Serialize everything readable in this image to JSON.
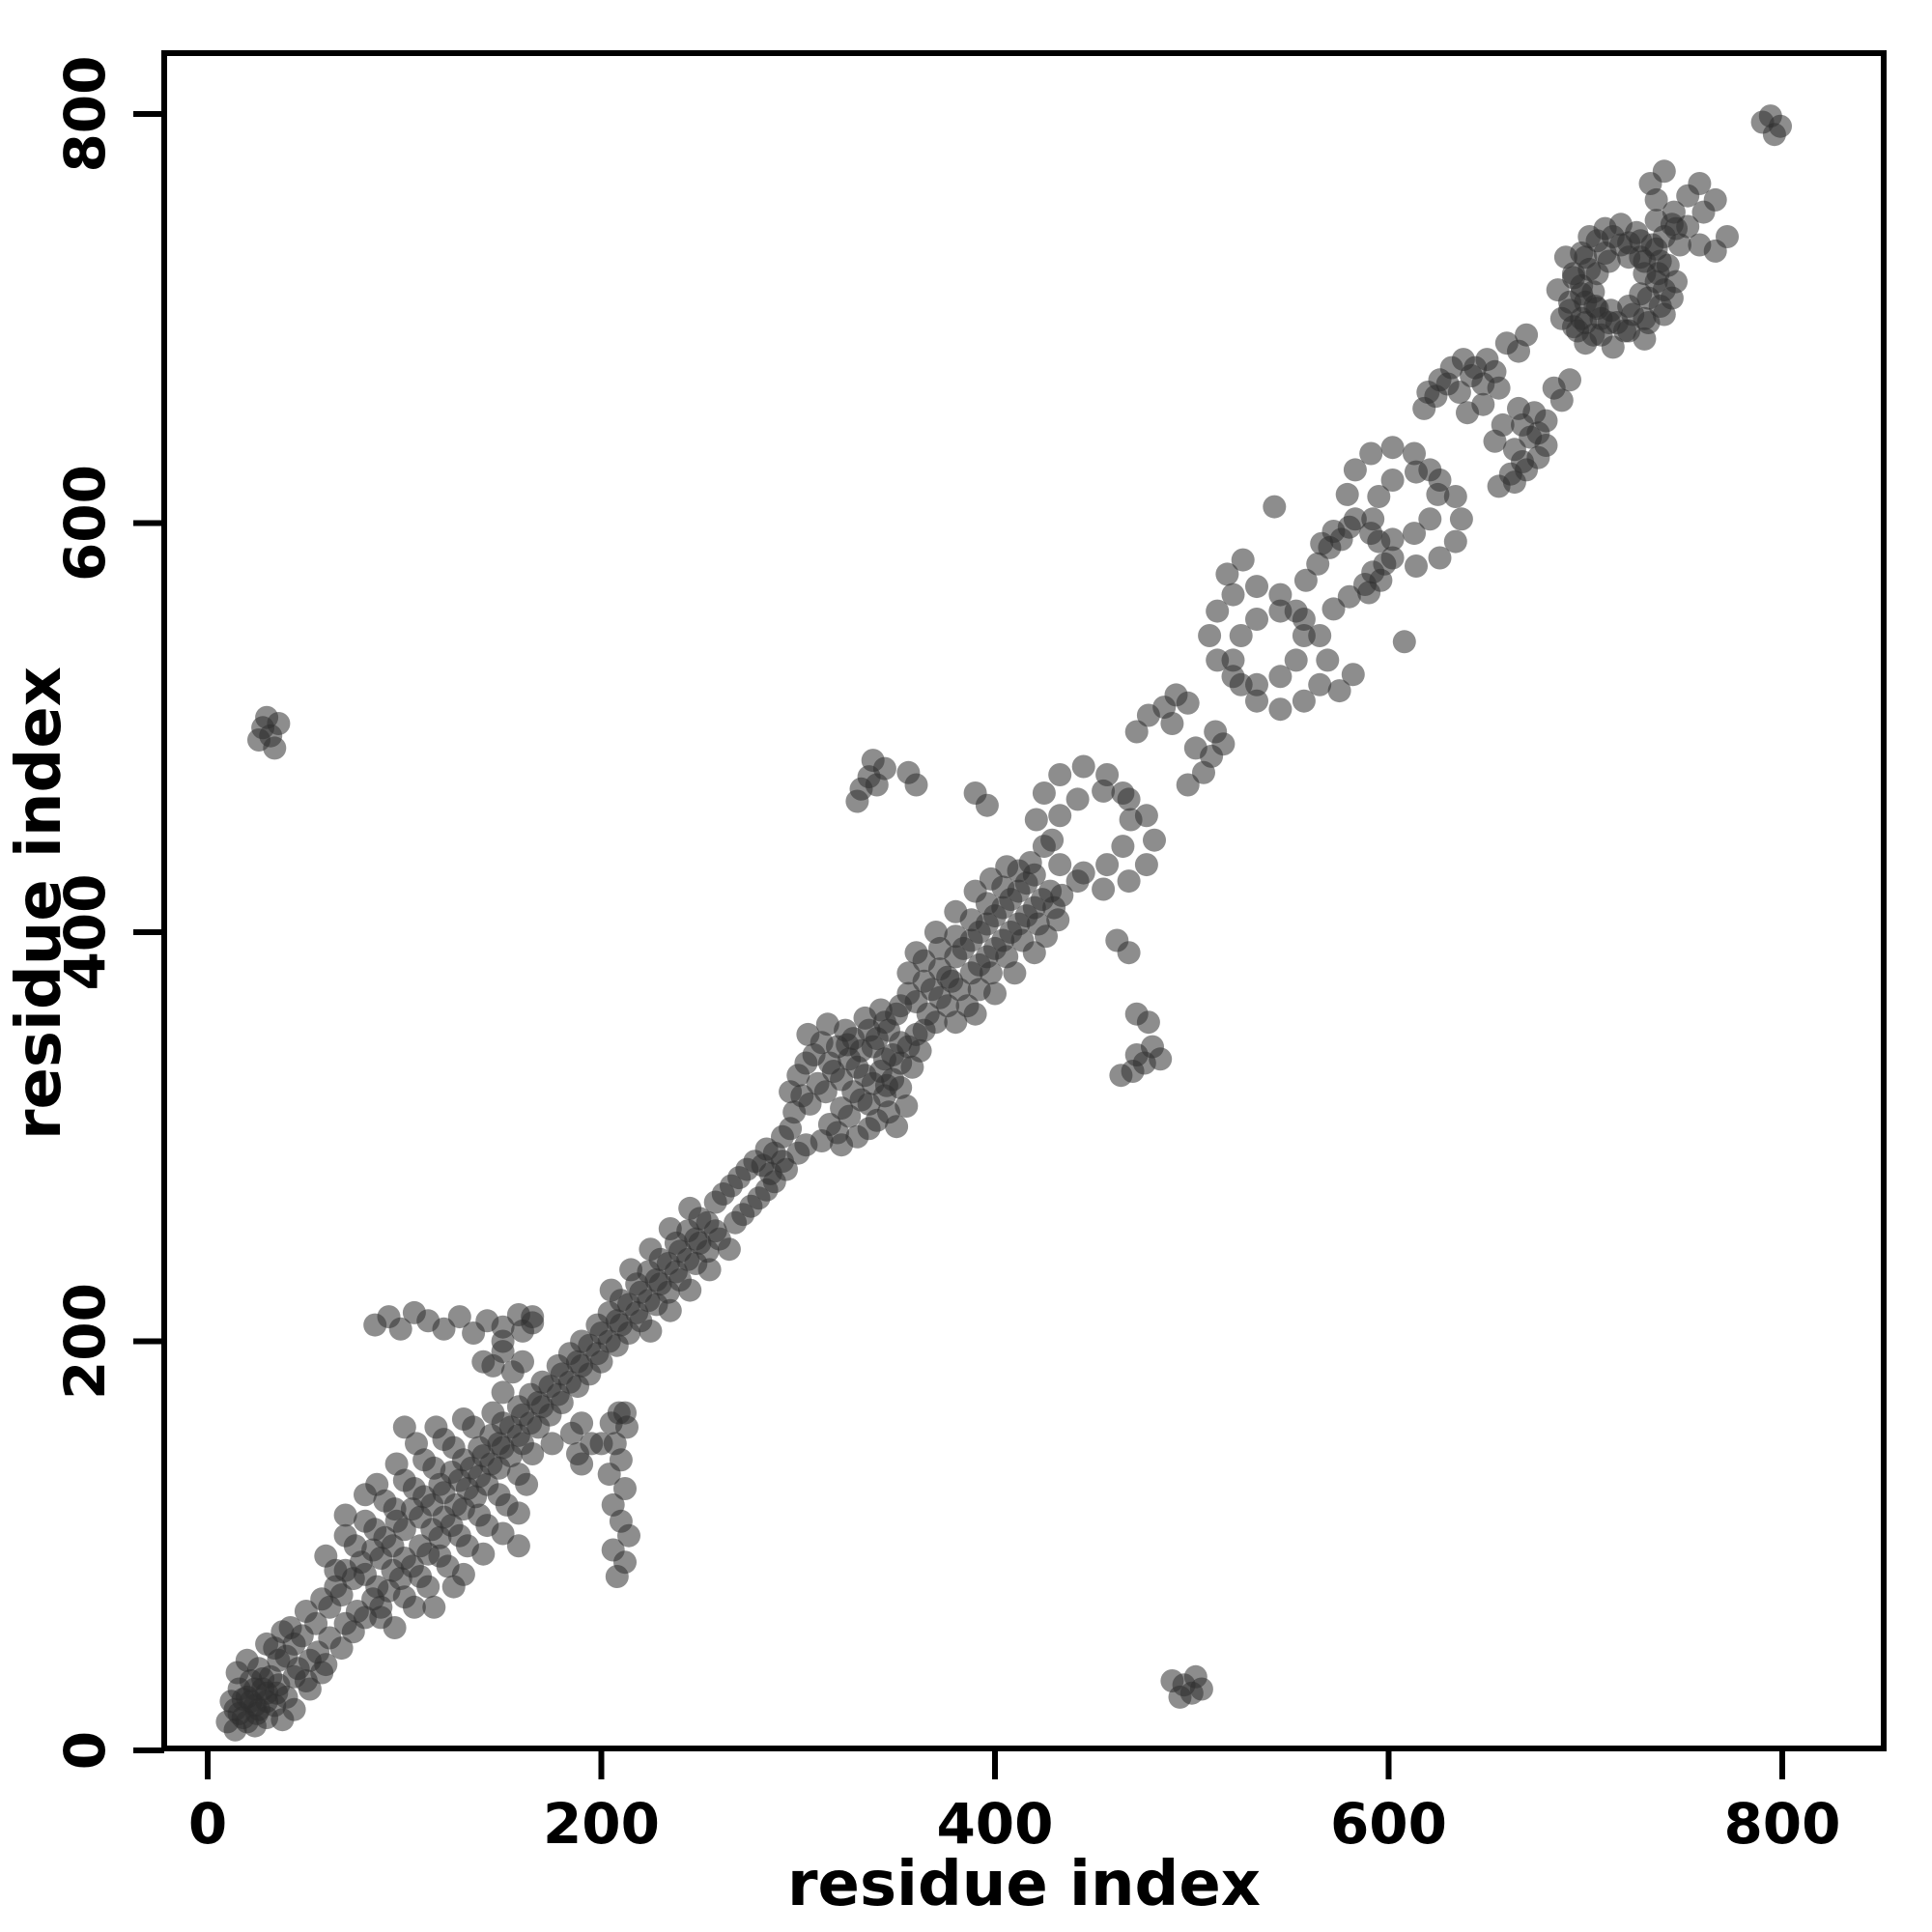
{
  "figure": {
    "background": "#ffffff"
  },
  "chart_data": {
    "type": "scatter",
    "title": "",
    "xlabel": "residue index",
    "ylabel": "residue index",
    "xlim": [
      -30,
      840
    ],
    "ylim": [
      -30,
      840
    ],
    "x_ticks": [
      0,
      200,
      400,
      600,
      800
    ],
    "y_ticks": [
      0,
      200,
      400,
      600,
      800
    ],
    "grid": false,
    "legend": false,
    "marker": {
      "color": "#303030",
      "opacity": 0.55,
      "radius_px": 12
    },
    "symmetric": true,
    "points": [
      [
        10,
        14
      ],
      [
        14,
        20
      ],
      [
        18,
        16
      ],
      [
        20,
        26
      ],
      [
        24,
        22
      ],
      [
        16,
        30
      ],
      [
        22,
        34
      ],
      [
        28,
        30
      ],
      [
        30,
        24
      ],
      [
        26,
        40
      ],
      [
        32,
        36
      ],
      [
        36,
        44
      ],
      [
        12,
        24
      ],
      [
        20,
        44
      ],
      [
        34,
        50
      ],
      [
        40,
        46
      ],
      [
        30,
        52
      ],
      [
        44,
        52
      ],
      [
        38,
        58
      ],
      [
        25,
        18
      ],
      [
        15,
        38
      ],
      [
        35,
        28
      ],
      [
        42,
        60
      ],
      [
        48,
        56
      ],
      [
        50,
        68
      ],
      [
        55,
        62
      ],
      [
        58,
        74
      ],
      [
        62,
        70
      ],
      [
        65,
        80
      ],
      [
        68,
        76
      ],
      [
        70,
        88
      ],
      [
        74,
        84
      ],
      [
        78,
        92
      ],
      [
        80,
        86
      ],
      [
        84,
        98
      ],
      [
        88,
        94
      ],
      [
        90,
        104
      ],
      [
        94,
        100
      ],
      [
        96,
        112
      ],
      [
        100,
        108
      ],
      [
        104,
        118
      ],
      [
        108,
        114
      ],
      [
        110,
        124
      ],
      [
        114,
        120
      ],
      [
        118,
        130
      ],
      [
        120,
        126
      ],
      [
        124,
        136
      ],
      [
        128,
        132
      ],
      [
        130,
        142
      ],
      [
        134,
        138
      ],
      [
        138,
        148
      ],
      [
        140,
        144
      ],
      [
        144,
        154
      ],
      [
        148,
        150
      ],
      [
        150,
        160
      ],
      [
        154,
        158
      ],
      [
        158,
        168
      ],
      [
        160,
        164
      ],
      [
        164,
        174
      ],
      [
        168,
        170
      ],
      [
        170,
        180
      ],
      [
        174,
        178
      ],
      [
        178,
        188
      ],
      [
        180,
        184
      ],
      [
        184,
        194
      ],
      [
        188,
        190
      ],
      [
        190,
        200
      ],
      [
        194,
        198
      ],
      [
        198,
        208
      ],
      [
        200,
        204
      ],
      [
        204,
        214
      ],
      [
        208,
        210
      ],
      [
        210,
        220
      ],
      [
        214,
        218
      ],
      [
        218,
        228
      ],
      [
        220,
        224
      ],
      [
        224,
        234
      ],
      [
        228,
        230
      ],
      [
        230,
        240
      ],
      [
        234,
        238
      ],
      [
        238,
        248
      ],
      [
        240,
        244
      ],
      [
        244,
        254
      ],
      [
        248,
        250
      ],
      [
        250,
        260
      ],
      [
        254,
        258
      ],
      [
        245,
        265
      ],
      [
        235,
        255
      ],
      [
        225,
        245
      ],
      [
        215,
        235
      ],
      [
        205,
        225
      ],
      [
        60,
        95
      ],
      [
        70,
        105
      ],
      [
        80,
        112
      ],
      [
        90,
        122
      ],
      [
        100,
        132
      ],
      [
        110,
        142
      ],
      [
        120,
        152
      ],
      [
        130,
        162
      ],
      [
        65,
        88
      ],
      [
        75,
        100
      ],
      [
        85,
        108
      ],
      [
        95,
        118
      ],
      [
        105,
        128
      ],
      [
        115,
        138
      ],
      [
        125,
        148
      ],
      [
        135,
        158
      ],
      [
        145,
        165
      ],
      [
        150,
        175
      ],
      [
        155,
        185
      ],
      [
        160,
        190
      ],
      [
        86,
        130
      ],
      [
        96,
        140
      ],
      [
        106,
        150
      ],
      [
        116,
        158
      ],
      [
        70,
        115
      ],
      [
        80,
        125
      ],
      [
        140,
        190
      ],
      [
        150,
        200
      ],
      [
        160,
        205
      ],
      [
        165,
        212
      ],
      [
        100,
        158
      ],
      [
        150,
        195
      ],
      [
        145,
        188
      ],
      [
        85,
        208
      ],
      [
        92,
        212
      ],
      [
        98,
        206
      ],
      [
        105,
        214
      ],
      [
        112,
        210
      ],
      [
        120,
        206
      ],
      [
        128,
        212
      ],
      [
        135,
        204
      ],
      [
        142,
        210
      ],
      [
        150,
        207
      ],
      [
        158,
        213
      ],
      [
        165,
        209
      ],
      [
        28,
        500
      ],
      [
        32,
        496
      ],
      [
        30,
        505
      ],
      [
        34,
        490
      ],
      [
        36,
        502
      ],
      [
        26,
        494
      ],
      [
        258,
        268
      ],
      [
        262,
        272
      ],
      [
        266,
        276
      ],
      [
        270,
        280
      ],
      [
        274,
        284
      ],
      [
        278,
        288
      ],
      [
        282,
        286
      ],
      [
        284,
        294
      ],
      [
        288,
        292
      ],
      [
        292,
        300
      ],
      [
        296,
        304
      ],
      [
        298,
        312
      ],
      [
        302,
        320
      ],
      [
        306,
        316
      ],
      [
        310,
        326
      ],
      [
        314,
        322
      ],
      [
        318,
        332
      ],
      [
        322,
        328
      ],
      [
        326,
        338
      ],
      [
        330,
        334
      ],
      [
        308,
        340
      ],
      [
        312,
        346
      ],
      [
        316,
        336
      ],
      [
        320,
        344
      ],
      [
        324,
        352
      ],
      [
        328,
        348
      ],
      [
        332,
        342
      ],
      [
        336,
        352
      ],
      [
        340,
        348
      ],
      [
        344,
        356
      ],
      [
        300,
        330
      ],
      [
        304,
        336
      ],
      [
        334,
        358
      ],
      [
        338,
        344
      ],
      [
        342,
        362
      ],
      [
        346,
        352
      ],
      [
        350,
        360
      ],
      [
        296,
        322
      ],
      [
        305,
        350
      ],
      [
        315,
        355
      ],
      [
        325,
        345
      ],
      [
        332,
        470
      ],
      [
        336,
        476
      ],
      [
        340,
        472
      ],
      [
        344,
        480
      ],
      [
        338,
        484
      ],
      [
        330,
        464
      ],
      [
        356,
        478
      ],
      [
        360,
        472
      ],
      [
        352,
        364
      ],
      [
        356,
        370
      ],
      [
        360,
        366
      ],
      [
        364,
        376
      ],
      [
        368,
        372
      ],
      [
        372,
        382
      ],
      [
        376,
        378
      ],
      [
        380,
        388
      ],
      [
        384,
        392
      ],
      [
        388,
        396
      ],
      [
        392,
        400
      ],
      [
        396,
        404
      ],
      [
        400,
        408
      ],
      [
        404,
        412
      ],
      [
        408,
        416
      ],
      [
        412,
        420
      ],
      [
        416,
        424
      ],
      [
        420,
        428
      ],
      [
        380,
        398
      ],
      [
        388,
        406
      ],
      [
        396,
        414
      ],
      [
        404,
        422
      ],
      [
        372,
        392
      ],
      [
        364,
        386
      ],
      [
        356,
        380
      ],
      [
        412,
        430
      ],
      [
        418,
        434
      ],
      [
        390,
        420
      ],
      [
        398,
        426
      ],
      [
        406,
        432
      ],
      [
        380,
        410
      ],
      [
        370,
        400
      ],
      [
        360,
        390
      ],
      [
        390,
        468
      ],
      [
        396,
        462
      ],
      [
        421,
        455
      ],
      [
        425,
        468
      ],
      [
        433,
        477
      ],
      [
        445,
        481
      ],
      [
        457,
        477
      ],
      [
        465,
        468
      ],
      [
        469,
        455
      ],
      [
        465,
        442
      ],
      [
        457,
        433
      ],
      [
        445,
        429
      ],
      [
        433,
        433
      ],
      [
        425,
        442
      ],
      [
        472,
        498
      ],
      [
        478,
        506
      ],
      [
        486,
        510
      ],
      [
        492,
        516
      ],
      [
        498,
        512
      ],
      [
        490,
        502
      ],
      [
        509,
        545
      ],
      [
        513,
        557
      ],
      [
        521,
        565
      ],
      [
        533,
        569
      ],
      [
        545,
        565
      ],
      [
        553,
        557
      ],
      [
        557,
        545
      ],
      [
        553,
        533
      ],
      [
        545,
        525
      ],
      [
        533,
        521
      ],
      [
        521,
        525
      ],
      [
        513,
        533
      ],
      [
        518,
        575
      ],
      [
        526,
        582
      ],
      [
        558,
        572
      ],
      [
        564,
        580
      ],
      [
        570,
        588
      ],
      [
        576,
        592
      ],
      [
        566,
        590
      ],
      [
        572,
        596
      ],
      [
        580,
        598
      ],
      [
        542,
        608
      ],
      [
        579,
        614
      ],
      [
        583,
        626
      ],
      [
        591,
        634
      ],
      [
        602,
        637
      ],
      [
        613,
        634
      ],
      [
        621,
        626
      ],
      [
        625,
        614
      ],
      [
        621,
        602
      ],
      [
        613,
        595
      ],
      [
        602,
        592
      ],
      [
        591,
        595
      ],
      [
        583,
        602
      ],
      [
        618,
        656
      ],
      [
        624,
        662
      ],
      [
        630,
        668
      ],
      [
        636,
        664
      ],
      [
        642,
        672
      ],
      [
        648,
        668
      ],
      [
        632,
        676
      ],
      [
        638,
        680
      ],
      [
        644,
        676
      ],
      [
        650,
        680
      ],
      [
        626,
        670
      ],
      [
        620,
        664
      ],
      [
        654,
        674
      ],
      [
        656,
        666
      ],
      [
        648,
        658
      ],
      [
        640,
        654
      ],
      [
        660,
        688
      ],
      [
        666,
        684
      ],
      [
        670,
        692
      ],
      [
        694,
        722
      ],
      [
        698,
        732
      ],
      [
        706,
        738
      ],
      [
        714,
        740
      ],
      [
        722,
        737
      ],
      [
        728,
        730
      ],
      [
        730,
        722
      ],
      [
        728,
        712
      ],
      [
        722,
        706
      ],
      [
        713,
        704
      ],
      [
        705,
        706
      ],
      [
        698,
        712
      ],
      [
        688,
        700
      ],
      [
        692,
        708
      ],
      [
        700,
        698
      ],
      [
        708,
        700
      ],
      [
        716,
        698
      ],
      [
        724,
        702
      ],
      [
        732,
        710
      ],
      [
        736,
        718
      ],
      [
        738,
        728
      ],
      [
        734,
        736
      ],
      [
        726,
        742
      ],
      [
        718,
        746
      ],
      [
        710,
        744
      ],
      [
        702,
        740
      ],
      [
        690,
        730
      ],
      [
        686,
        714
      ],
      [
        696,
        694
      ],
      [
        704,
        692
      ],
      [
        720,
        694
      ],
      [
        730,
        700
      ],
      [
        740,
        740
      ],
      [
        744,
        746
      ],
      [
        736,
        748
      ],
      [
        745,
        752
      ],
      [
        752,
        760
      ],
      [
        758,
        766
      ],
      [
        733,
        766
      ],
      [
        740,
        772
      ],
      [
        736,
        758
      ],
      [
        790,
        796
      ],
      [
        794,
        799
      ]
    ]
  }
}
